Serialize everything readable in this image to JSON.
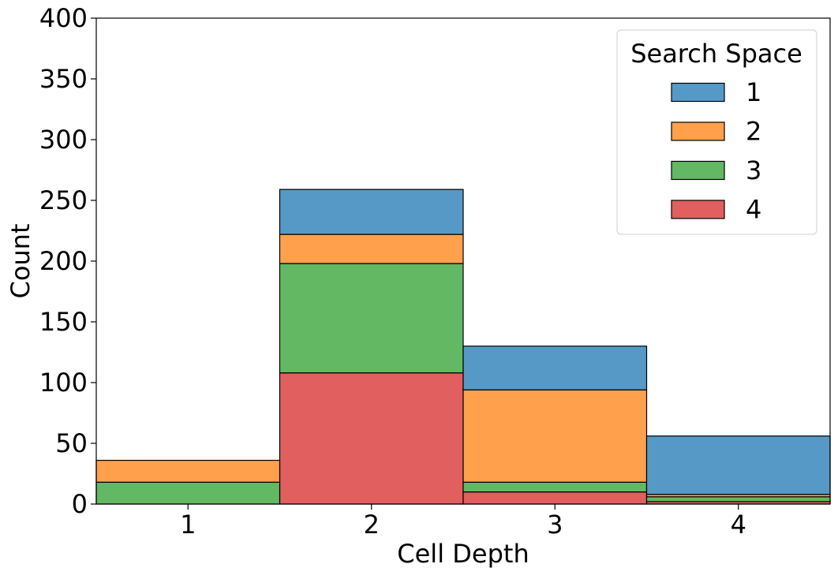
{
  "chart_data": {
    "type": "bar",
    "stacked": true,
    "title": "",
    "xlabel": "Cell Depth",
    "ylabel": "Count",
    "categories": [
      "1",
      "2",
      "3",
      "4"
    ],
    "ylim": [
      0,
      400
    ],
    "yticks": [
      0,
      50,
      100,
      150,
      200,
      250,
      300,
      350,
      400
    ],
    "grid": false,
    "legend": {
      "title": "Search Space",
      "placement": "top-right"
    },
    "series": [
      {
        "name": "4",
        "color": "#e15f5e",
        "values": [
          0,
          108,
          10,
          2
        ]
      },
      {
        "name": "3",
        "color": "#63b863",
        "values": [
          18,
          90,
          8,
          4
        ]
      },
      {
        "name": "2",
        "color": "#ffa04c",
        "values": [
          18,
          24,
          76,
          2
        ]
      },
      {
        "name": "1",
        "color": "#5699c7",
        "values": [
          0,
          37,
          36,
          48
        ]
      }
    ],
    "legend_order": [
      "1",
      "2",
      "3",
      "4"
    ]
  }
}
